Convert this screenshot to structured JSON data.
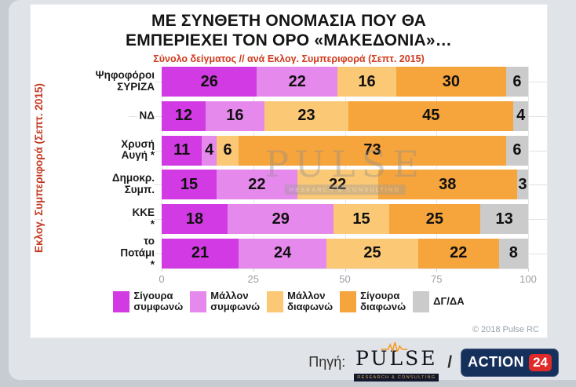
{
  "title": {
    "line1": "ΜΕ ΣΥΝΘΕΤΗ ΟΝΟΜΑΣΙΑ ΠΟΥ ΘΑ",
    "line2": "ΕΜΠΕΡΙΕΧΕΙ ΤΟΝ ΟΡΟ «ΜΑΚΕΔΟΝΙΑ»…",
    "subtitle": "Σύνολο δείγματος // ανά Εκλογ. Συμπεριφορά (Σεπτ. 2015)"
  },
  "y_axis_title": "Εκλογ. Συμπεριφορά (Σεπτ. 2015)",
  "copyright": "© 2018 Pulse RC",
  "watermark": {
    "word": "PULSE",
    "sub": "RESEARCH & CONSULTING"
  },
  "source": {
    "label": "Πηγή:",
    "separator": "/",
    "pulse_logo": {
      "word": "PULSE",
      "sub": "RESEARCH & CONSULTING"
    },
    "action24_logo": {
      "word": "ACTION",
      "number": "24"
    }
  },
  "colors": {
    "subtitle_red": "#d03a1e",
    "y_axis_title_red": "#c33a22",
    "axis_text_gray": "#9aa0a6",
    "pulse_orange": "#f59a23",
    "action24_navy": "#16305c",
    "action24_red": "#e02a2a"
  },
  "chart_data": {
    "type": "bar",
    "orientation": "horizontal",
    "stacked": true,
    "categories": [
      "Ψηφοφόροι\nΣΥΡΙΖΑ",
      "ΝΔ",
      "Χρυσή Αυγή *",
      "Δημοκρ. Συμπ.",
      "ΚΚΕ *",
      "το Ποτάμι *"
    ],
    "series": [
      {
        "name": "Σίγουρα\nσυμφωνώ",
        "color": "#d23be3",
        "values": [
          26,
          12,
          11,
          15,
          18,
          21
        ]
      },
      {
        "name": "Μάλλον\nσυμφωνώ",
        "color": "#e689ec",
        "values": [
          22,
          16,
          4,
          22,
          29,
          24
        ]
      },
      {
        "name": "Μάλλον\nδιαφωνώ",
        "color": "#fbc876",
        "values": [
          16,
          23,
          6,
          22,
          15,
          25
        ]
      },
      {
        "name": "Σίγουρα\nδιαφωνώ",
        "color": "#f6a43c",
        "values": [
          30,
          45,
          73,
          38,
          25,
          22
        ]
      },
      {
        "name": "ΔΓ/ΔΑ",
        "color": "#cbcbcb",
        "values": [
          6,
          4,
          6,
          3,
          13,
          8
        ]
      }
    ],
    "xlim": [
      0,
      100
    ],
    "x_ticks": [
      0,
      25,
      50,
      75,
      100
    ],
    "grid": true,
    "legend_position": "bottom"
  }
}
